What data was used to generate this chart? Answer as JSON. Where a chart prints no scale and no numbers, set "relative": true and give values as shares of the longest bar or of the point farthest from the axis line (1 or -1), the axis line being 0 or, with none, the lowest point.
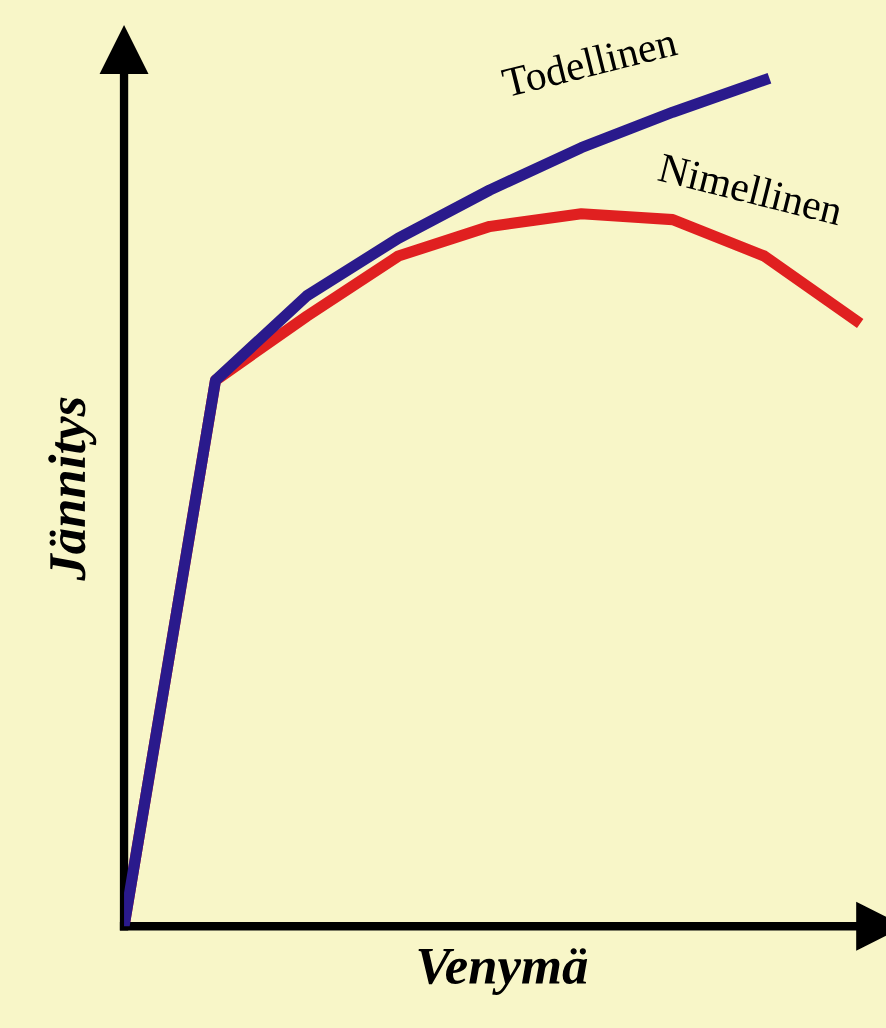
{
  "chart_data": {
    "type": "line",
    "relative": true,
    "xlabel": "Venymä",
    "ylabel": "Jännitys",
    "marker": "none",
    "line_style": "solid",
    "categories": [
      null,
      null,
      null,
      null,
      null,
      null,
      null,
      null,
      null
    ],
    "series": [
      {
        "name": "Nimellinen",
        "color": "#e02020",
        "values": [
          0,
          0.645,
          0.721,
          0.792,
          0.827,
          0.842,
          0.835,
          0.792,
          0.716
        ]
      },
      {
        "name": "Todellinen",
        "color": "#2a1a8c",
        "values": [
          0,
          0.645,
          0.745,
          0.813,
          0.87,
          0.92,
          0.962,
          1.0,
          null
        ]
      }
    ]
  }
}
